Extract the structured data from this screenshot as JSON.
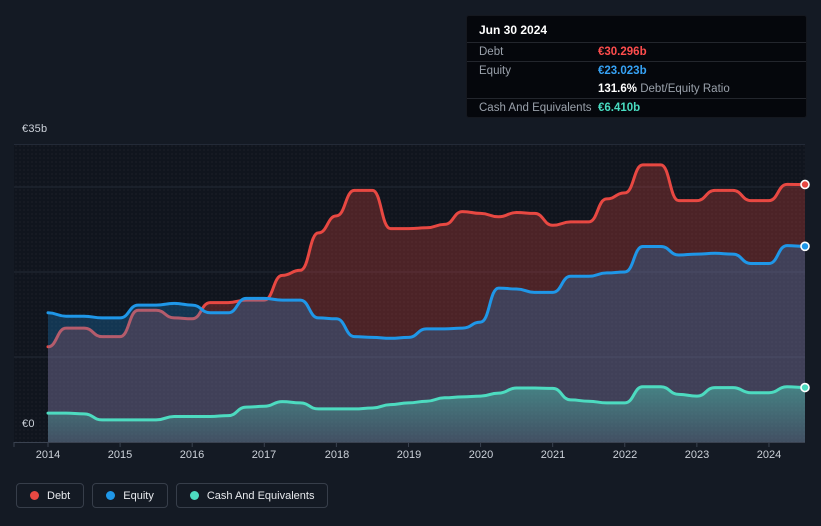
{
  "chart": {
    "y_axis": {
      "top": "€35b",
      "bottom": "€0"
    },
    "x_ticks": [
      "2014",
      "2015",
      "2016",
      "2017",
      "2018",
      "2019",
      "2020",
      "2021",
      "2022",
      "2023",
      "2024"
    ]
  },
  "tooltip": {
    "date": "Jun 30 2024",
    "debt_label": "Debt",
    "debt_value": "€30.296b",
    "equity_label": "Equity",
    "equity_value": "€23.023b",
    "ratio_value": "131.6%",
    "ratio_label": "Debt/Equity Ratio",
    "cash_label": "Cash And Equivalents",
    "cash_value": "€6.410b"
  },
  "legend": [
    {
      "label": "Debt",
      "color": "#e84842"
    },
    {
      "label": "Equity",
      "color": "#1f97e8"
    },
    {
      "label": "Cash And Equivalents",
      "color": "#4ddbc0"
    }
  ],
  "colors": {
    "debt": "#e84842",
    "equity": "#1f97e8",
    "cash": "#4ddbc0",
    "debt_text": "#ff4d4d",
    "equity_text": "#36a2f5",
    "cash_text": "#49dcc1",
    "page_bg": "#141a24",
    "plot_bg": "#10151e",
    "gridline": "#232a37",
    "axis_line": "#3a4250"
  },
  "chart_data": {
    "type": "area",
    "x_start": 2014,
    "x_step": 0.25,
    "x_end": 2024.5,
    "x_tick_labels": [
      "2014",
      "2015",
      "2016",
      "2017",
      "2018",
      "2019",
      "2020",
      "2021",
      "2022",
      "2023",
      "2024"
    ],
    "ylim": [
      0,
      35
    ],
    "y_gridlines": [
      35,
      30,
      20,
      10
    ],
    "y_axis_labels": [
      "€35b",
      "€0"
    ],
    "grid": true,
    "legend_position": "bottom-left",
    "units": "EUR billions",
    "series": [
      {
        "name": "Debt",
        "color": "#e84842",
        "fill_opacity": 0.28,
        "values": [
          11.2,
          13.4,
          13.4,
          12.4,
          12.4,
          15.5,
          15.5,
          14.6,
          14.5,
          16.4,
          16.4,
          16.7,
          16.7,
          19.6,
          20.2,
          24.6,
          26.6,
          29.6,
          29.6,
          25.1,
          25.1,
          25.2,
          25.6,
          27.1,
          26.9,
          26.5,
          27.0,
          26.9,
          25.5,
          25.9,
          25.9,
          28.6,
          29.3,
          32.6,
          32.6,
          28.4,
          28.4,
          29.6,
          29.6,
          28.4,
          28.4,
          30.3,
          30.296
        ]
      },
      {
        "name": "Equity",
        "color": "#1f97e8",
        "fill_opacity": 0.26,
        "values": [
          15.2,
          14.8,
          14.8,
          14.6,
          14.6,
          16.1,
          16.1,
          16.3,
          16.1,
          15.2,
          15.2,
          16.9,
          16.9,
          16.7,
          16.7,
          14.6,
          14.5,
          12.4,
          12.3,
          12.2,
          12.3,
          13.3,
          13.3,
          13.4,
          14.1,
          18.1,
          18.0,
          17.6,
          17.6,
          19.5,
          19.5,
          19.9,
          20.0,
          23.0,
          23.0,
          22.0,
          22.1,
          22.2,
          22.1,
          21.0,
          21.0,
          23.1,
          23.023
        ]
      },
      {
        "name": "Cash And Equivalents",
        "color": "#4ddbc0",
        "fill_opacity": 0.3,
        "gradient": true,
        "values": [
          3.4,
          3.4,
          3.3,
          2.6,
          2.6,
          2.6,
          2.6,
          3.0,
          3.0,
          3.0,
          3.1,
          4.1,
          4.2,
          4.75,
          4.6,
          3.9,
          3.9,
          3.9,
          4.0,
          4.4,
          4.6,
          4.8,
          5.2,
          5.3,
          5.4,
          5.75,
          6.35,
          6.35,
          6.3,
          4.95,
          4.8,
          4.6,
          4.6,
          6.5,
          6.5,
          5.6,
          5.4,
          6.4,
          6.4,
          5.8,
          5.8,
          6.5,
          6.41
        ]
      }
    ],
    "last_point": {
      "date": "Jun 30 2024",
      "debt": 30.296,
      "equity": 23.023,
      "cash": 6.41,
      "debt_equity_ratio": "131.6%"
    }
  }
}
